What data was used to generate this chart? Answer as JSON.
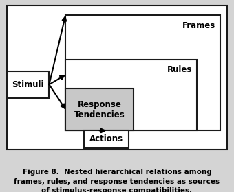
{
  "bg_color": "#d4d4d4",
  "diagram_bg": "#ffffff",
  "box_edge_color": "#1a1a1a",
  "response_fill": "#c8c8c8",
  "caption": "Figure 8.  Nested hierarchical relations among\nframes, rules, and response tendencies as sources\nof stimulus-response compatibilities.",
  "caption_fontsize": 7.5,
  "labels": {
    "frames": "Frames",
    "rules": "Rules",
    "response": "Response\nTendencies",
    "stimuli": "Stimuli",
    "actions": "Actions"
  },
  "label_fontsize": 8.5,
  "outer": [
    0.03,
    0.22,
    0.94,
    0.75
  ],
  "frames": [
    0.28,
    0.32,
    0.66,
    0.6
  ],
  "rules": [
    0.28,
    0.32,
    0.56,
    0.37
  ],
  "response": [
    0.28,
    0.32,
    0.29,
    0.22
  ],
  "stimuli": [
    0.03,
    0.49,
    0.18,
    0.14
  ],
  "actions": [
    0.36,
    0.23,
    0.19,
    0.09
  ]
}
